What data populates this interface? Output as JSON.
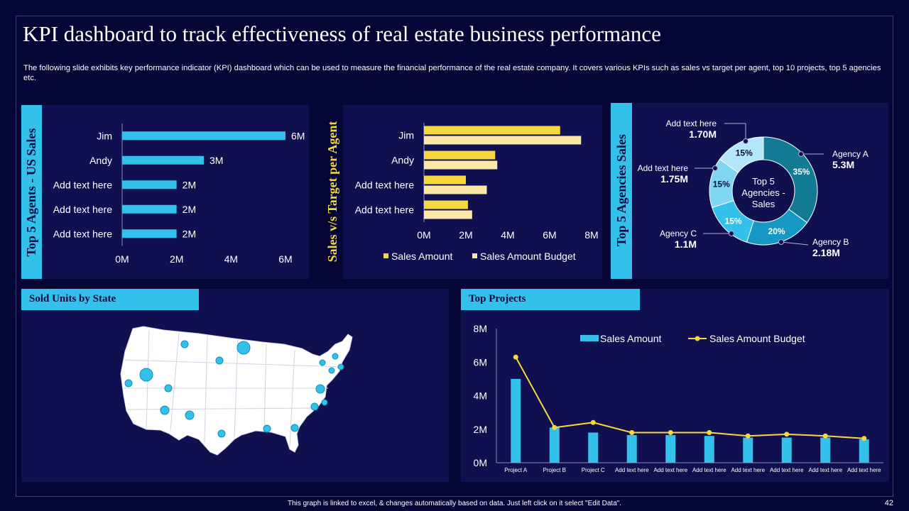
{
  "title": "KPI dashboard to track effectiveness of real estate business performance",
  "subtitle": "The following slide exhibits key performance indicator (KPI) dashboard which can be used to measure the financial performance of the real estate company. It covers various KPIs such as sales vs target per agent, top 10 projects, top 5 agencies etc.",
  "panels": {
    "agents_label": "Top 5 Agents - US Sales",
    "target_label": "Sales v/s Target per Agent",
    "agencies_label": "Top 5 Agencies Sales",
    "sold_label": "Sold Units by State",
    "projects_label": "Top Projects"
  },
  "footer": "This graph is linked to excel, & changes automatically based on data. Just left click on it select \"Edit Data\".",
  "page_number": "42",
  "colors": {
    "cyan": "#33c0ea",
    "yellow": "#f5d840",
    "cream": "#fbe7a6",
    "teal": "#127a92",
    "panel": "#101050",
    "bg": "#050636"
  },
  "chart_data": [
    {
      "id": "agents",
      "type": "bar",
      "orientation": "horizontal",
      "title": "Top 5 Agents - US Sales",
      "categories": [
        "Jim",
        "Andy",
        "Add text here",
        "Add text here",
        "Add text here"
      ],
      "values": [
        6,
        3,
        2,
        2,
        2
      ],
      "value_labels": [
        "6M",
        "3M",
        "2M",
        "2M",
        "2M"
      ],
      "xlim": [
        0,
        6
      ],
      "xticks": [
        "0M",
        "2M",
        "4M",
        "6M"
      ]
    },
    {
      "id": "target",
      "type": "bar",
      "orientation": "horizontal",
      "title": "Sales v/s Target per Agent",
      "categories": [
        "Jim",
        "Andy",
        "Add text here",
        "Add text here"
      ],
      "series": [
        {
          "name": "Sales Amount",
          "values": [
            6.5,
            3.4,
            2.0,
            2.1
          ]
        },
        {
          "name": "Sales Amount Budget",
          "values": [
            7.5,
            3.5,
            3.0,
            2.3
          ]
        }
      ],
      "xlim": [
        0,
        8
      ],
      "xticks": [
        "0M",
        "2M",
        "4M",
        "6M",
        "8M"
      ],
      "legend": "bottom"
    },
    {
      "id": "agencies",
      "type": "pie",
      "style": "donut",
      "title": "Top 5 Agencies Sales",
      "center_label": [
        "Top 5",
        "Agencies -",
        "Sales"
      ],
      "slices": [
        {
          "name": "Agency A",
          "value": 35,
          "label": "35%",
          "amount": "5.3M"
        },
        {
          "name": "Agency B",
          "value": 20,
          "label": "20%",
          "amount": "2.18M"
        },
        {
          "name": "Agency C",
          "value": 15,
          "label": "15%",
          "amount": "1.1M"
        },
        {
          "name": "Add text here",
          "value": 15,
          "label": "15%",
          "amount": "1.75M"
        },
        {
          "name": "Add text here",
          "value": 15,
          "label": "15%",
          "amount": "1.70M"
        }
      ]
    },
    {
      "id": "projects",
      "type": "bar",
      "title": "Top Projects",
      "categories": [
        "Project A",
        "Project B",
        "Project C",
        "Add text here",
        "Add text here",
        "Add text here",
        "Add text here",
        "Add text here",
        "Add text here",
        "Add text here"
      ],
      "series": [
        {
          "name": "Sales Amount",
          "kind": "bar",
          "values": [
            5.0,
            2.1,
            1.8,
            1.65,
            1.65,
            1.6,
            1.5,
            1.5,
            1.5,
            1.4
          ]
        },
        {
          "name": "Sales Amount Budget",
          "kind": "line",
          "values": [
            6.3,
            2.1,
            2.4,
            1.8,
            1.8,
            1.8,
            1.6,
            1.7,
            1.6,
            1.45
          ]
        }
      ],
      "ylim": [
        0,
        8
      ],
      "yticks": [
        "0M",
        "2M",
        "4M",
        "6M",
        "8M"
      ],
      "legend": "top"
    }
  ]
}
